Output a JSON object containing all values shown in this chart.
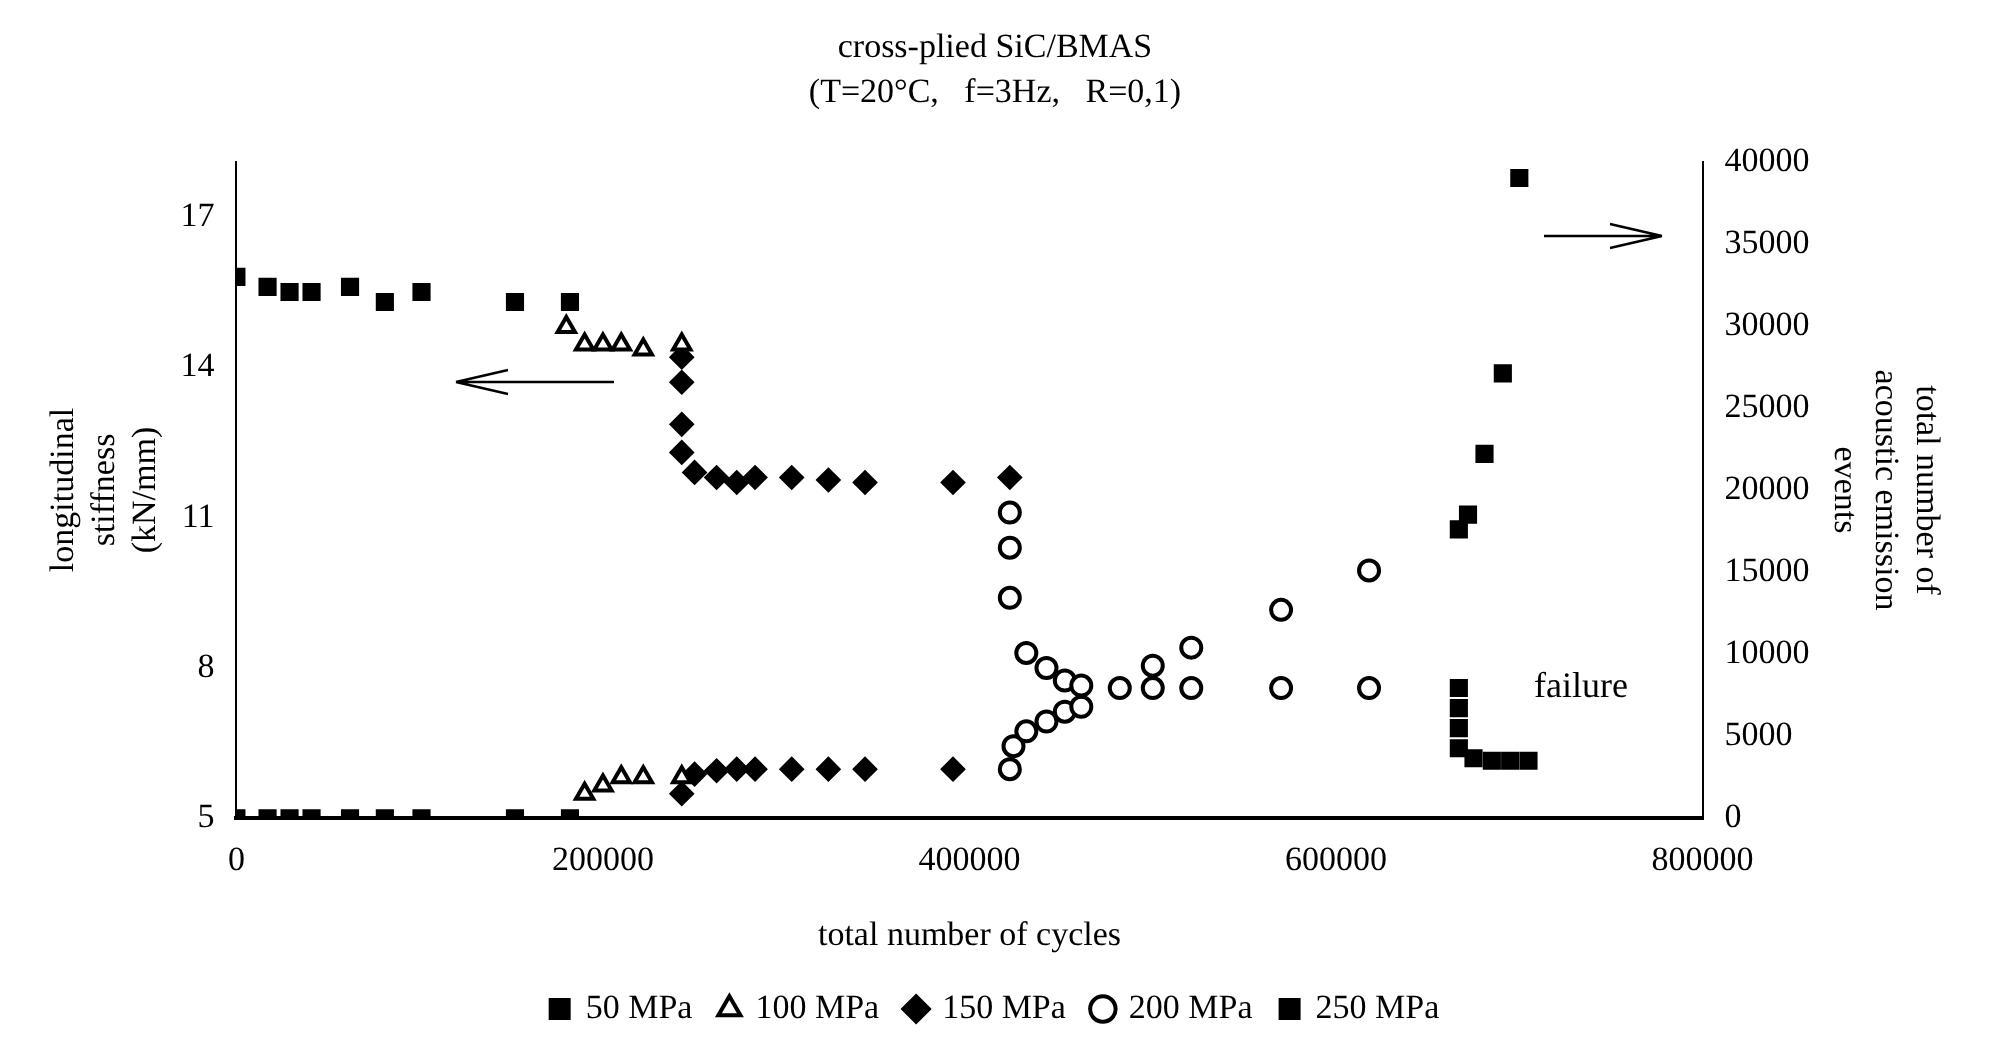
{
  "chart_data": {
    "type": "scatter",
    "title": "cross-plied SiC/BMAS",
    "subtitle": "(T=20°C,   f=3Hz,   R=0,1)",
    "xlabel": "total number of cycles",
    "ylabel": "longitudinal stiffness (kN/mm)",
    "y2label": "total number of acoustic emission events",
    "xlim": [
      0,
      800000
    ],
    "xticks": [
      0,
      200000,
      400000,
      600000,
      800000
    ],
    "ylim": [
      5,
      18.1
    ],
    "yticks": [
      5,
      8,
      11,
      14,
      17
    ],
    "y2lim": [
      0,
      40000
    ],
    "y2ticks": [
      0,
      5000,
      10000,
      15000,
      20000,
      25000,
      30000,
      35000,
      40000
    ],
    "grid": false,
    "legend": "bottom",
    "annotations": [
      "failure"
    ],
    "series": [
      {
        "name": "50 MPa",
        "color": "#000000",
        "marker": "square",
        "x": [
          0,
          17000,
          29000,
          41000,
          62000,
          81000,
          101000,
          152000,
          182000
        ],
        "values": [
          15.8,
          15.6,
          15.5,
          15.5,
          15.6,
          15.3,
          15.5,
          15.3,
          15.3
        ]
      },
      {
        "name": "100 MPa",
        "color": "#000000",
        "marker": "triangle",
        "x": [
          180000,
          190000,
          200000,
          210000,
          222000,
          243000
        ],
        "values": [
          14.8,
          14.45,
          14.45,
          14.45,
          14.35,
          14.45
        ]
      },
      {
        "name": "150 MPa",
        "color": "#000000",
        "marker": "diamond",
        "x": [
          243000,
          243000,
          243000,
          243000,
          250000,
          262000,
          273000,
          283000,
          303000,
          323000,
          343000,
          391000,
          422000
        ],
        "values": [
          14.2,
          13.7,
          12.86,
          12.3,
          11.9,
          11.8,
          11.7,
          11.8,
          11.8,
          11.75,
          11.7,
          11.7,
          11.8
        ]
      },
      {
        "name": "200 MPa",
        "color": "#000000",
        "marker": "circle",
        "x": [
          422000,
          422000,
          422000,
          431000,
          442000,
          452000,
          461000,
          482000,
          500000,
          521000,
          570000,
          618000
        ],
        "values": [
          11.1,
          10.4,
          9.4,
          8.3,
          8.0,
          7.75,
          7.65,
          7.6,
          7.6,
          7.6,
          7.6,
          7.6
        ]
      },
      {
        "name": "250 MPa",
        "color": "#000000",
        "marker": "square",
        "x": [
          667000,
          667000,
          667000,
          667000,
          675000,
          685000,
          695000,
          705000
        ],
        "values": [
          7.6,
          7.2,
          6.8,
          6.4,
          6.2,
          6.15,
          6.15,
          6.15
        ]
      },
      {
        "color": "#000000",
        "marker": "square",
        "axis": "y2",
        "x": [
          0,
          17000,
          29000,
          41000,
          62000,
          81000,
          101000,
          152000,
          182000
        ],
        "values": [
          0,
          0,
          0,
          0,
          0,
          0,
          0,
          0,
          0
        ]
      },
      {
        "color": "#000000",
        "marker": "triangle",
        "axis": "y2",
        "x": [
          190000,
          200000,
          210000,
          222000,
          243000
        ],
        "values": [
          1500,
          2000,
          2500,
          2500,
          2500
        ]
      },
      {
        "color": "#000000",
        "marker": "diamond",
        "axis": "y2",
        "x": [
          243000,
          250000,
          262000,
          273000,
          283000,
          303000,
          323000,
          343000,
          391000
        ],
        "values": [
          1500,
          2700,
          2900,
          3000,
          3000,
          3000,
          3000,
          3000,
          3000
        ]
      },
      {
        "color": "#000000",
        "marker": "circle",
        "axis": "y2",
        "x": [
          422000,
          424000,
          431000,
          442000,
          452000,
          461000,
          482000,
          500000,
          521000,
          570000,
          618000
        ],
        "values": [
          3000,
          4400,
          5300,
          5900,
          6500,
          6800,
          null,
          9300,
          10400,
          12700,
          15100
        ]
      },
      {
        "color": "#000000",
        "marker": "square",
        "axis": "y2",
        "x": [
          667000,
          672000,
          681000,
          691000,
          700000
        ],
        "values": [
          17600,
          18500,
          22200,
          27100,
          39000
        ]
      }
    ]
  }
}
